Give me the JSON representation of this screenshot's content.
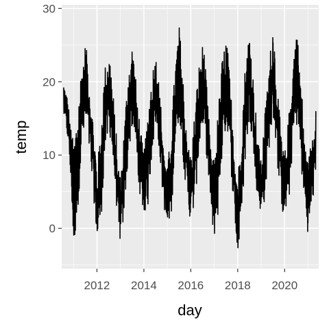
{
  "chart_data": {
    "type": "line",
    "xlabel": "day",
    "ylabel": "temp",
    "x_range": [
      "2010-07-01",
      "2021-06-15"
    ],
    "ylim": [
      -5.5,
      30.5
    ],
    "x_ticks": [
      {
        "date": "2012-01-01",
        "label": "2012"
      },
      {
        "date": "2014-01-01",
        "label": "2014"
      },
      {
        "date": "2016-01-01",
        "label": "2016"
      },
      {
        "date": "2018-01-01",
        "label": "2018"
      },
      {
        "date": "2020-01-01",
        "label": "2020"
      }
    ],
    "y_ticks": [
      {
        "value": 0,
        "label": "0"
      },
      {
        "value": 10,
        "label": "10"
      },
      {
        "value": 20,
        "label": "20"
      },
      {
        "value": 30,
        "label": "30"
      }
    ],
    "grid": true,
    "series": [
      {
        "color": "#000000",
        "x": [
          "2010-08-01",
          "2010-10-01",
          "2010-12-01",
          "2011-01-01",
          "2011-03-01",
          "2011-05-01",
          "2011-07-01",
          "2011-08-01",
          "2011-10-01",
          "2011-12-01",
          "2012-01-01",
          "2012-03-01",
          "2012-05-01",
          "2012-07-01",
          "2012-08-01",
          "2012-10-01",
          "2012-12-01",
          "2013-01-01",
          "2013-03-01",
          "2013-05-01",
          "2013-07-01",
          "2013-08-01",
          "2013-10-01",
          "2013-12-01",
          "2014-01-01",
          "2014-03-01",
          "2014-05-01",
          "2014-07-01",
          "2014-08-01",
          "2014-10-01",
          "2014-12-01",
          "2015-01-01",
          "2015-03-01",
          "2015-05-01",
          "2015-07-01",
          "2015-08-01",
          "2015-10-01",
          "2015-12-01",
          "2016-01-01",
          "2016-03-01",
          "2016-05-01",
          "2016-07-01",
          "2016-08-01",
          "2016-10-01",
          "2016-12-01",
          "2017-01-01",
          "2017-03-01",
          "2017-05-01",
          "2017-07-01",
          "2017-08-01",
          "2017-10-01",
          "2017-12-01",
          "2018-01-01",
          "2018-03-01",
          "2018-05-01",
          "2018-07-01",
          "2018-08-01",
          "2018-10-01",
          "2018-12-01",
          "2019-01-01",
          "2019-03-01",
          "2019-05-01",
          "2019-07-01",
          "2019-08-01",
          "2019-10-01",
          "2019-12-01",
          "2020-01-01",
          "2020-03-01",
          "2020-05-01",
          "2020-07-01",
          "2020-08-01",
          "2020-10-01",
          "2020-12-01",
          "2021-01-01",
          "2021-03-01",
          "2021-05-01"
        ],
        "y_high": [
          20,
          18,
          13,
          12,
          16,
          22,
          25,
          24,
          18,
          12,
          8,
          14,
          22,
          24,
          23,
          16,
          9,
          7,
          14,
          22,
          25,
          23,
          17,
          12,
          10,
          16,
          21,
          24,
          22,
          16,
          9,
          8,
          14,
          22,
          28,
          25,
          17,
          11,
          10,
          16,
          22,
          25,
          24,
          16,
          9,
          10,
          16,
          23,
          26,
          24,
          17,
          9,
          7,
          14,
          23,
          27,
          24,
          17,
          11,
          9,
          16,
          22,
          28,
          25,
          17,
          11,
          10,
          15,
          22,
          28,
          25,
          18,
          10,
          9,
          13,
          16
        ],
        "y_low": [
          15,
          12,
          4,
          -3,
          2,
          10,
          14,
          13,
          7,
          2,
          -2,
          1,
          10,
          13,
          12,
          6,
          -1,
          -2,
          2,
          10,
          14,
          13,
          6,
          3,
          2,
          3,
          10,
          14,
          13,
          6,
          1,
          0,
          2,
          11,
          15,
          13,
          6,
          2,
          1,
          3,
          10,
          14,
          13,
          6,
          0,
          -1,
          2,
          10,
          14,
          13,
          6,
          -1,
          -4,
          2,
          10,
          15,
          13,
          6,
          3,
          2,
          4,
          11,
          15,
          13,
          6,
          2,
          2,
          3,
          11,
          14,
          13,
          6,
          1,
          -1,
          3,
          7
        ]
      }
    ]
  }
}
